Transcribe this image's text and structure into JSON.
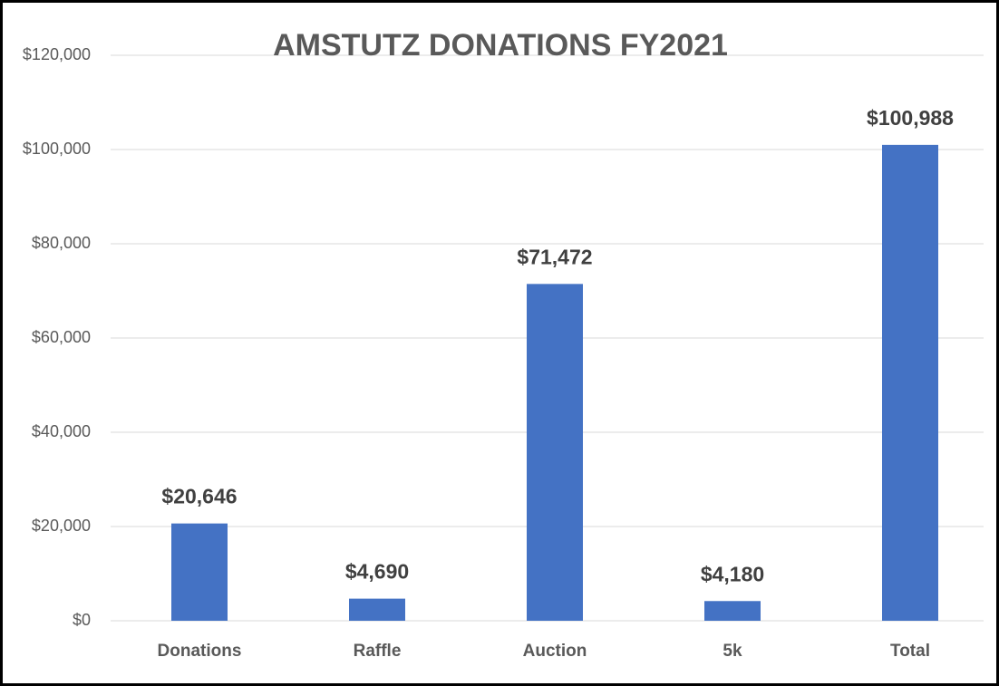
{
  "chart_data": {
    "type": "bar",
    "title": "AMSTUTZ DONATIONS FY2021",
    "categories": [
      "Donations",
      "Raffle",
      "Auction",
      "5k",
      "Total"
    ],
    "values": [
      20646,
      4690,
      71472,
      4180,
      100988
    ],
    "value_labels": [
      "$20,646",
      "$4,690",
      "$71,472",
      "$4,180",
      "$100,988"
    ],
    "color": "#4472c4",
    "ylim": [
      0,
      120000
    ],
    "yticks": [
      {
        "value": 0,
        "label": "$0"
      },
      {
        "value": 20000,
        "label": "$20,000"
      },
      {
        "value": 40000,
        "label": "$40,000"
      },
      {
        "value": 60000,
        "label": "$60,000"
      },
      {
        "value": 80000,
        "label": "$80,000"
      },
      {
        "value": 100000,
        "label": "$100,000"
      },
      {
        "value": 120000,
        "label": "$120,000"
      }
    ],
    "grid": true
  }
}
